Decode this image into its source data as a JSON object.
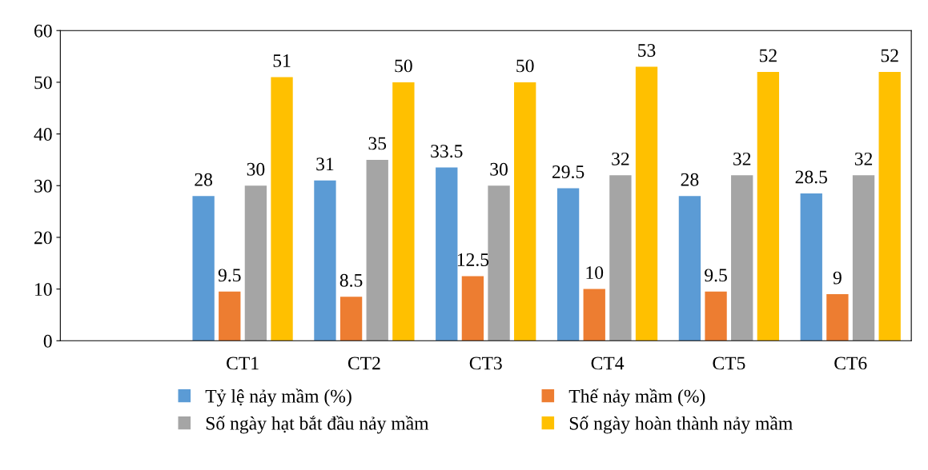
{
  "chart_data": {
    "type": "bar",
    "categories": [
      null,
      "CT1",
      "CT2",
      "CT3",
      "CT4",
      "CT5",
      "CT6"
    ],
    "series": [
      {
        "name": "Tỷ lệ nảy mầm (%)",
        "color": "#5b9bd5",
        "values": [
          null,
          28,
          31,
          33.5,
          29.5,
          28,
          28.5
        ]
      },
      {
        "name": "Thế nảy mầm (%)",
        "color": "#ed7d31",
        "values": [
          null,
          9.5,
          8.5,
          12.5,
          10,
          9.5,
          9
        ]
      },
      {
        "name": "Số ngày hạt bắt đầu nảy mầm",
        "color": "#a5a5a5",
        "values": [
          null,
          30,
          35,
          30,
          32,
          32,
          32
        ]
      },
      {
        "name": "Số ngày hoàn thành nảy mầm",
        "color": "#ffc000",
        "values": [
          null,
          51,
          50,
          50,
          53,
          52,
          52
        ]
      }
    ],
    "ylim": [
      0,
      60
    ],
    "yticks": [
      0,
      10,
      20,
      30,
      40,
      50,
      60
    ],
    "data_labels": true,
    "legend": "bottom",
    "grid": false
  }
}
